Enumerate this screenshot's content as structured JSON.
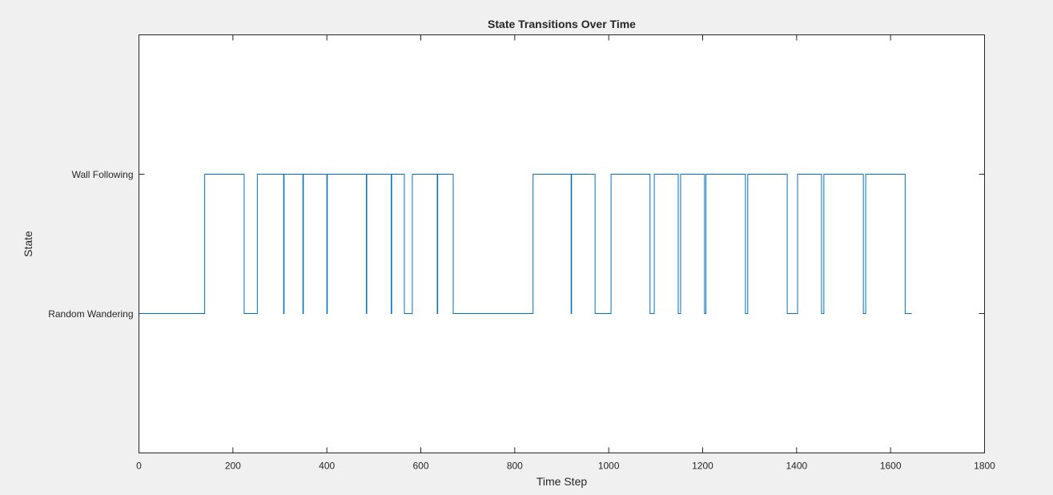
{
  "chart_data": {
    "type": "line",
    "step": true,
    "title": "State Transitions Over Time",
    "xlabel": "Time Step",
    "ylabel": "State",
    "xlim": [
      0,
      1800
    ],
    "ylim": [
      0,
      3
    ],
    "xticks": [
      0,
      200,
      400,
      600,
      800,
      1000,
      1200,
      1400,
      1600,
      1800
    ],
    "yticks": [
      {
        "value": 1,
        "label": "Random Wandering"
      },
      {
        "value": 2,
        "label": "Wall Following"
      }
    ],
    "grid": false,
    "box": true,
    "series": [
      {
        "color": "#0072bd",
        "segments": [
          {
            "start": 0,
            "end": 140,
            "state": 1
          },
          {
            "start": 140,
            "end": 224,
            "state": 2
          },
          {
            "start": 224,
            "end": 252,
            "state": 1
          },
          {
            "start": 252,
            "end": 308,
            "state": 2
          },
          {
            "start": 308,
            "end": 309,
            "state": 1
          },
          {
            "start": 309,
            "end": 349,
            "state": 2
          },
          {
            "start": 349,
            "end": 350,
            "state": 1
          },
          {
            "start": 350,
            "end": 400,
            "state": 2
          },
          {
            "start": 400,
            "end": 401,
            "state": 1
          },
          {
            "start": 401,
            "end": 484,
            "state": 2
          },
          {
            "start": 484,
            "end": 485,
            "state": 1
          },
          {
            "start": 485,
            "end": 537,
            "state": 2
          },
          {
            "start": 537,
            "end": 538,
            "state": 1
          },
          {
            "start": 538,
            "end": 565,
            "state": 2
          },
          {
            "start": 565,
            "end": 582,
            "state": 1
          },
          {
            "start": 582,
            "end": 635,
            "state": 2
          },
          {
            "start": 635,
            "end": 636,
            "state": 1
          },
          {
            "start": 636,
            "end": 669,
            "state": 2
          },
          {
            "start": 669,
            "end": 839,
            "state": 1
          },
          {
            "start": 839,
            "end": 920,
            "state": 2
          },
          {
            "start": 920,
            "end": 921,
            "state": 1
          },
          {
            "start": 921,
            "end": 971,
            "state": 2
          },
          {
            "start": 971,
            "end": 1005,
            "state": 1
          },
          {
            "start": 1005,
            "end": 1088,
            "state": 2
          },
          {
            "start": 1088,
            "end": 1097,
            "state": 1
          },
          {
            "start": 1097,
            "end": 1148,
            "state": 2
          },
          {
            "start": 1148,
            "end": 1153,
            "state": 1
          },
          {
            "start": 1153,
            "end": 1204,
            "state": 2
          },
          {
            "start": 1204,
            "end": 1207,
            "state": 1
          },
          {
            "start": 1207,
            "end": 1291,
            "state": 2
          },
          {
            "start": 1291,
            "end": 1296,
            "state": 1
          },
          {
            "start": 1296,
            "end": 1380,
            "state": 2
          },
          {
            "start": 1380,
            "end": 1402,
            "state": 1
          },
          {
            "start": 1402,
            "end": 1453,
            "state": 2
          },
          {
            "start": 1453,
            "end": 1458,
            "state": 1
          },
          {
            "start": 1458,
            "end": 1542,
            "state": 2
          },
          {
            "start": 1542,
            "end": 1547,
            "state": 1
          },
          {
            "start": 1547,
            "end": 1631,
            "state": 2
          },
          {
            "start": 1631,
            "end": 1645,
            "state": 1
          }
        ]
      }
    ]
  }
}
